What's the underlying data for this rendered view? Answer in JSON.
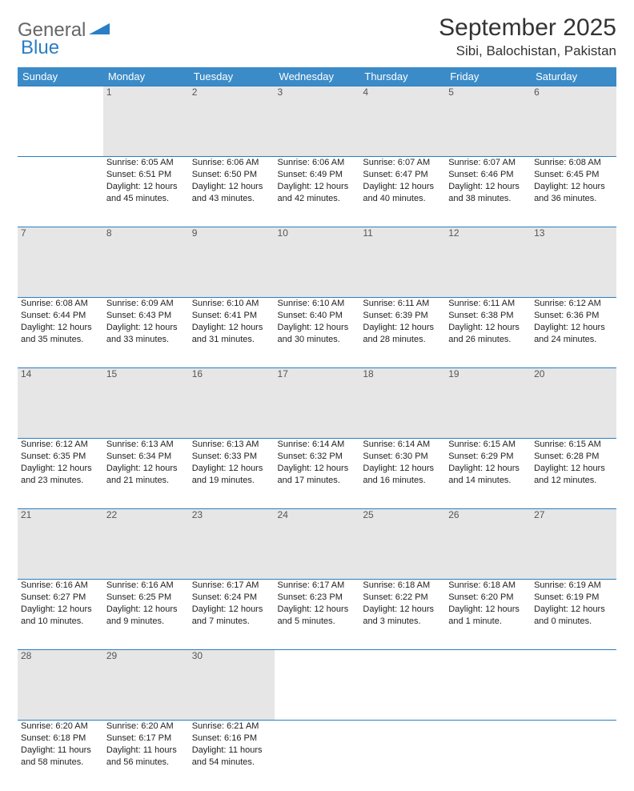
{
  "logo": {
    "part1": "General",
    "part2": "Blue"
  },
  "title": "September 2025",
  "location": "Sibi, Balochistan, Pakistan",
  "colors": {
    "header_bg": "#3b8bc8",
    "header_text": "#ffffff",
    "daynum_bg": "#e6e6e6",
    "border": "#2a7ec4",
    "logo_gray": "#666666",
    "logo_blue": "#2a7ec4"
  },
  "weekdays": [
    "Sunday",
    "Monday",
    "Tuesday",
    "Wednesday",
    "Thursday",
    "Friday",
    "Saturday"
  ],
  "weeks": [
    {
      "nums": [
        "",
        "1",
        "2",
        "3",
        "4",
        "5",
        "6"
      ],
      "cells": [
        {},
        {
          "sunrise": "Sunrise: 6:05 AM",
          "sunset": "Sunset: 6:51 PM",
          "day1": "Daylight: 12 hours",
          "day2": "and 45 minutes."
        },
        {
          "sunrise": "Sunrise: 6:06 AM",
          "sunset": "Sunset: 6:50 PM",
          "day1": "Daylight: 12 hours",
          "day2": "and 43 minutes."
        },
        {
          "sunrise": "Sunrise: 6:06 AM",
          "sunset": "Sunset: 6:49 PM",
          "day1": "Daylight: 12 hours",
          "day2": "and 42 minutes."
        },
        {
          "sunrise": "Sunrise: 6:07 AM",
          "sunset": "Sunset: 6:47 PM",
          "day1": "Daylight: 12 hours",
          "day2": "and 40 minutes."
        },
        {
          "sunrise": "Sunrise: 6:07 AM",
          "sunset": "Sunset: 6:46 PM",
          "day1": "Daylight: 12 hours",
          "day2": "and 38 minutes."
        },
        {
          "sunrise": "Sunrise: 6:08 AM",
          "sunset": "Sunset: 6:45 PM",
          "day1": "Daylight: 12 hours",
          "day2": "and 36 minutes."
        }
      ]
    },
    {
      "nums": [
        "7",
        "8",
        "9",
        "10",
        "11",
        "12",
        "13"
      ],
      "cells": [
        {
          "sunrise": "Sunrise: 6:08 AM",
          "sunset": "Sunset: 6:44 PM",
          "day1": "Daylight: 12 hours",
          "day2": "and 35 minutes."
        },
        {
          "sunrise": "Sunrise: 6:09 AM",
          "sunset": "Sunset: 6:43 PM",
          "day1": "Daylight: 12 hours",
          "day2": "and 33 minutes."
        },
        {
          "sunrise": "Sunrise: 6:10 AM",
          "sunset": "Sunset: 6:41 PM",
          "day1": "Daylight: 12 hours",
          "day2": "and 31 minutes."
        },
        {
          "sunrise": "Sunrise: 6:10 AM",
          "sunset": "Sunset: 6:40 PM",
          "day1": "Daylight: 12 hours",
          "day2": "and 30 minutes."
        },
        {
          "sunrise": "Sunrise: 6:11 AM",
          "sunset": "Sunset: 6:39 PM",
          "day1": "Daylight: 12 hours",
          "day2": "and 28 minutes."
        },
        {
          "sunrise": "Sunrise: 6:11 AM",
          "sunset": "Sunset: 6:38 PM",
          "day1": "Daylight: 12 hours",
          "day2": "and 26 minutes."
        },
        {
          "sunrise": "Sunrise: 6:12 AM",
          "sunset": "Sunset: 6:36 PM",
          "day1": "Daylight: 12 hours",
          "day2": "and 24 minutes."
        }
      ]
    },
    {
      "nums": [
        "14",
        "15",
        "16",
        "17",
        "18",
        "19",
        "20"
      ],
      "cells": [
        {
          "sunrise": "Sunrise: 6:12 AM",
          "sunset": "Sunset: 6:35 PM",
          "day1": "Daylight: 12 hours",
          "day2": "and 23 minutes."
        },
        {
          "sunrise": "Sunrise: 6:13 AM",
          "sunset": "Sunset: 6:34 PM",
          "day1": "Daylight: 12 hours",
          "day2": "and 21 minutes."
        },
        {
          "sunrise": "Sunrise: 6:13 AM",
          "sunset": "Sunset: 6:33 PM",
          "day1": "Daylight: 12 hours",
          "day2": "and 19 minutes."
        },
        {
          "sunrise": "Sunrise: 6:14 AM",
          "sunset": "Sunset: 6:32 PM",
          "day1": "Daylight: 12 hours",
          "day2": "and 17 minutes."
        },
        {
          "sunrise": "Sunrise: 6:14 AM",
          "sunset": "Sunset: 6:30 PM",
          "day1": "Daylight: 12 hours",
          "day2": "and 16 minutes."
        },
        {
          "sunrise": "Sunrise: 6:15 AM",
          "sunset": "Sunset: 6:29 PM",
          "day1": "Daylight: 12 hours",
          "day2": "and 14 minutes."
        },
        {
          "sunrise": "Sunrise: 6:15 AM",
          "sunset": "Sunset: 6:28 PM",
          "day1": "Daylight: 12 hours",
          "day2": "and 12 minutes."
        }
      ]
    },
    {
      "nums": [
        "21",
        "22",
        "23",
        "24",
        "25",
        "26",
        "27"
      ],
      "cells": [
        {
          "sunrise": "Sunrise: 6:16 AM",
          "sunset": "Sunset: 6:27 PM",
          "day1": "Daylight: 12 hours",
          "day2": "and 10 minutes."
        },
        {
          "sunrise": "Sunrise: 6:16 AM",
          "sunset": "Sunset: 6:25 PM",
          "day1": "Daylight: 12 hours",
          "day2": "and 9 minutes."
        },
        {
          "sunrise": "Sunrise: 6:17 AM",
          "sunset": "Sunset: 6:24 PM",
          "day1": "Daylight: 12 hours",
          "day2": "and 7 minutes."
        },
        {
          "sunrise": "Sunrise: 6:17 AM",
          "sunset": "Sunset: 6:23 PM",
          "day1": "Daylight: 12 hours",
          "day2": "and 5 minutes."
        },
        {
          "sunrise": "Sunrise: 6:18 AM",
          "sunset": "Sunset: 6:22 PM",
          "day1": "Daylight: 12 hours",
          "day2": "and 3 minutes."
        },
        {
          "sunrise": "Sunrise: 6:18 AM",
          "sunset": "Sunset: 6:20 PM",
          "day1": "Daylight: 12 hours",
          "day2": "and 1 minute."
        },
        {
          "sunrise": "Sunrise: 6:19 AM",
          "sunset": "Sunset: 6:19 PM",
          "day1": "Daylight: 12 hours",
          "day2": "and 0 minutes."
        }
      ]
    },
    {
      "nums": [
        "28",
        "29",
        "30",
        "",
        "",
        "",
        ""
      ],
      "cells": [
        {
          "sunrise": "Sunrise: 6:20 AM",
          "sunset": "Sunset: 6:18 PM",
          "day1": "Daylight: 11 hours",
          "day2": "and 58 minutes."
        },
        {
          "sunrise": "Sunrise: 6:20 AM",
          "sunset": "Sunset: 6:17 PM",
          "day1": "Daylight: 11 hours",
          "day2": "and 56 minutes."
        },
        {
          "sunrise": "Sunrise: 6:21 AM",
          "sunset": "Sunset: 6:16 PM",
          "day1": "Daylight: 11 hours",
          "day2": "and 54 minutes."
        },
        {},
        {},
        {},
        {}
      ]
    }
  ]
}
